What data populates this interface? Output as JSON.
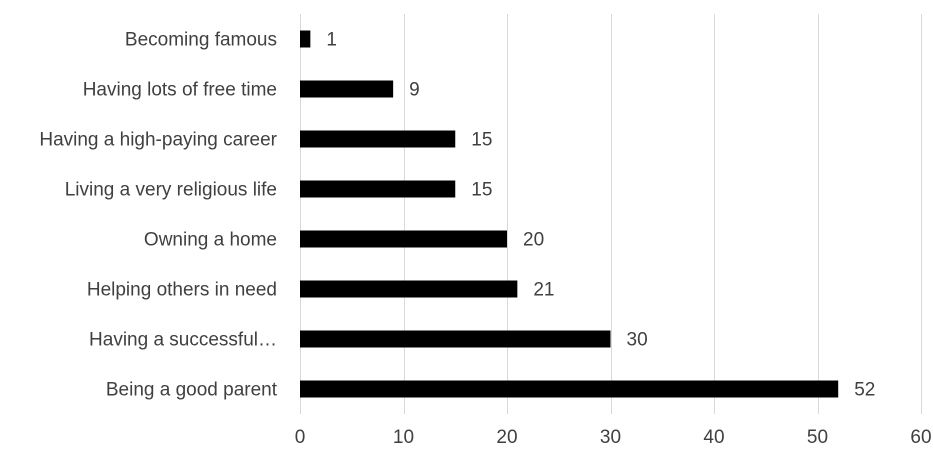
{
  "chart_data": {
    "type": "bar",
    "orientation": "horizontal",
    "categories": [
      "Becoming famous",
      "Having lots of free time",
      "Having a high-paying career",
      "Living a very religious life",
      "Owning a home",
      "Helping others in need",
      "Having a successful…",
      "Being a good parent"
    ],
    "values": [
      1,
      9,
      15,
      15,
      20,
      21,
      30,
      52
    ],
    "xlim": [
      0,
      60
    ],
    "xticks": [
      0,
      10,
      20,
      30,
      40,
      50,
      60
    ],
    "grid": true,
    "data_labels": true,
    "bar_color": "#000000",
    "grid_color": "#d9d9d9",
    "text_color": "#404040"
  }
}
